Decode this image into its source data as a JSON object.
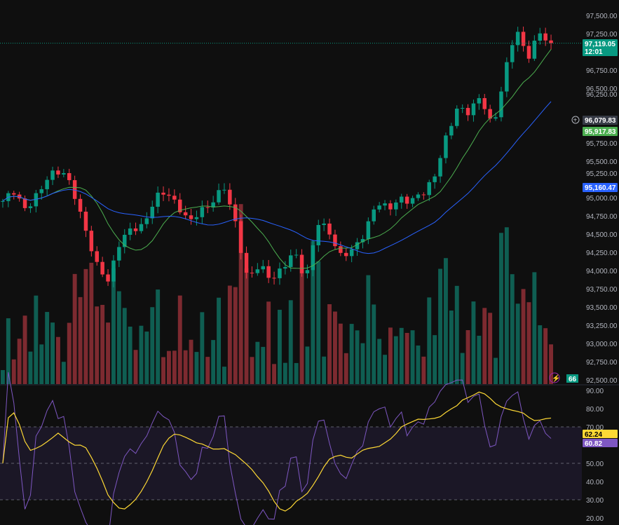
{
  "chart_data": {
    "type": "candlestick",
    "price_axis": {
      "ticks": [
        "97,500.00",
        "97,250.00",
        "96,750.00",
        "96,500.00",
        "96,250.00",
        "95,750.00",
        "95,500.00",
        "95,250.00",
        "95,000.00",
        "94,750.00",
        "94,500.00",
        "94,250.00",
        "94,000.00",
        "93,750.00",
        "93,500.00",
        "93,250.00",
        "93,000.00",
        "92,750.00",
        "92,500.00"
      ],
      "range": [
        92500,
        97500
      ]
    },
    "closes": [
      94923,
      95115,
      94827,
      95020,
      95356,
      95356,
      95115,
      94635,
      94058,
      93866,
      94394,
      94538,
      94635,
      94971,
      95067,
      94923,
      94635,
      94827,
      94971,
      95115,
      94635,
      93866,
      94058,
      93914,
      94010,
      94250,
      93914,
      94635,
      94538,
      94202,
      94250,
      94538,
      94923,
      94827,
      95020,
      94923,
      95067,
      95308,
      95789,
      96269,
      96173,
      96365,
      95981,
      96654,
      97327,
      96942,
      97231,
      97119
    ],
    "last_price": {
      "value": "97,119.05",
      "countdown": "12:01",
      "color": "#089981"
    },
    "crosshair_price": "96,079.83",
    "ma_fast": {
      "value": "95,917.83",
      "color": "#4caf50"
    },
    "ma_slow": {
      "value": "95,160.47",
      "color": "#2962ff"
    },
    "volume_label": "66",
    "rsi": {
      "ticks": [
        "90.00",
        "80.00",
        "70.00",
        "50.00",
        "40.00",
        "30.00",
        "20.00"
      ],
      "range": [
        20,
        90
      ],
      "upper": 70,
      "mid": 50,
      "lower": 30,
      "value": "60.82",
      "ma_value": "62.24",
      "color": "#7e57c2",
      "ma_color": "#fdd835"
    },
    "colors": {
      "up": "#089981",
      "down": "#f23645"
    }
  }
}
